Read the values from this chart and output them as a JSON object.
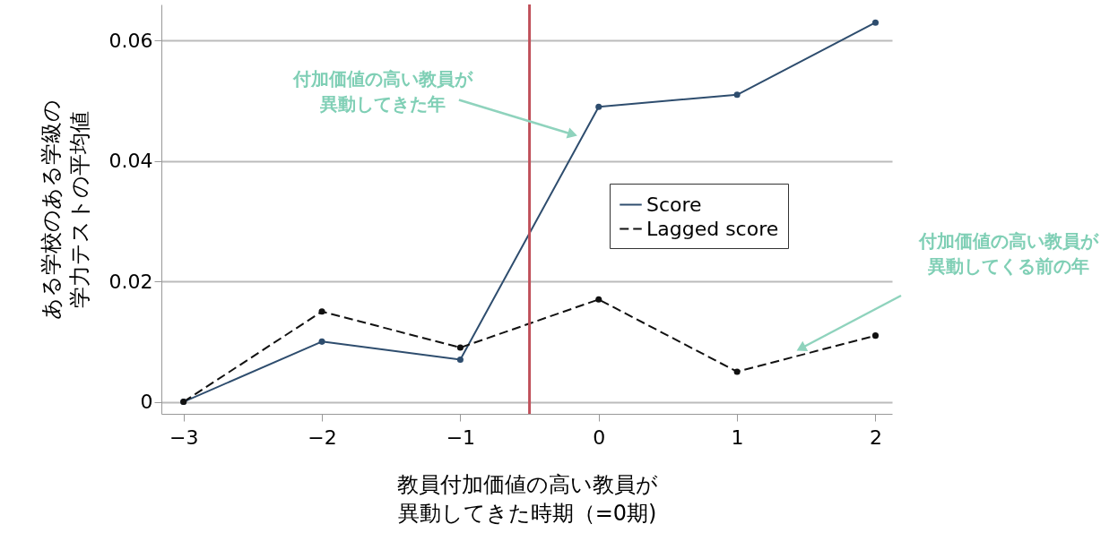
{
  "chart_data": {
    "type": "line",
    "xlabel": "教員付加価値の高い教員が異動してきた時期（=0期)",
    "ylabel": "ある学校のある学級の学力テストの平均値",
    "x": [
      -3,
      -2,
      -1,
      0,
      1,
      2
    ],
    "series": [
      {
        "name": "Score",
        "color": "#2e4d6e",
        "line_style": "solid",
        "values": [
          0,
          0.01,
          0.007,
          0.049,
          0.051,
          0.063
        ]
      },
      {
        "name": "Lagged score",
        "color": "#111111",
        "line_style": "dashed",
        "values": [
          0,
          0.015,
          0.009,
          0.017,
          0.005,
          0.011
        ]
      }
    ],
    "xlim": [
      -3.16,
      2.12
    ],
    "ylim": [
      -0.002,
      0.066
    ],
    "xticks": [
      -3,
      -2,
      -1,
      0,
      1,
      2
    ],
    "yticks": [
      0,
      0.02,
      0.04,
      0.06
    ],
    "grid": "y",
    "legend": "right",
    "marker": "circle",
    "ref_lines": [
      {
        "axis": "x",
        "value": -0.5,
        "color": "#c0505a"
      }
    ],
    "annotations": [
      {
        "text": "付加価値の高い教員が異動してきた年",
        "x": -0.2,
        "y": 0.0445
      },
      "付加価値の高い教員が異動してくる前の年"
    ]
  }
}
